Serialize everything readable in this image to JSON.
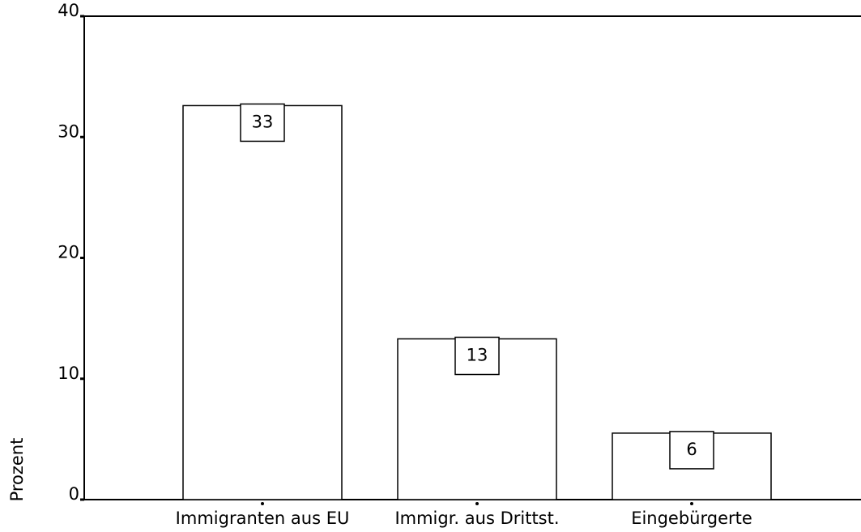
{
  "chart_data": {
    "type": "bar",
    "y_label": "Prozent",
    "categories": [
      "Immigranten aus EU",
      "Immigr. aus Drittst.",
      "Eingebürgerte"
    ],
    "values": [
      32.6,
      13.3,
      5.5
    ],
    "value_labels": [
      "33",
      "13",
      "6"
    ],
    "color": "#ffffff",
    "ylim": [
      0,
      40
    ],
    "yticks": [
      0,
      10,
      20,
      30,
      40
    ],
    "grid": false
  }
}
